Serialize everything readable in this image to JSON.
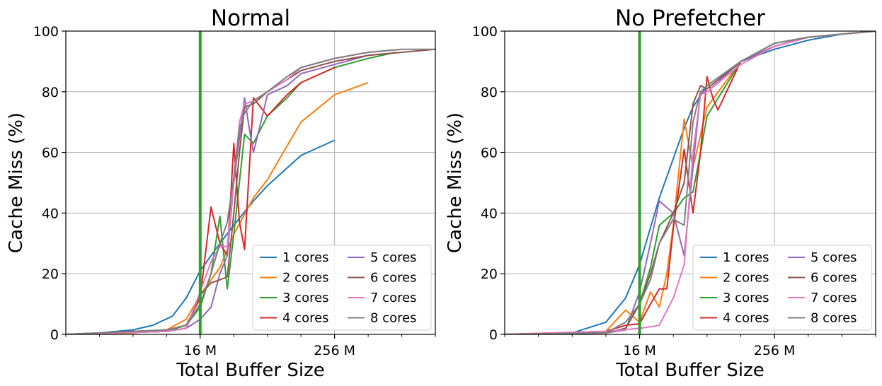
{
  "chart_data": [
    {
      "type": "line",
      "title": "Normal",
      "xlabel": "Total Buffer Size",
      "ylabel": "Cache Miss (%)",
      "x_scale": "log2",
      "xlim": [
        1,
        2048
      ],
      "ylim": [
        0,
        100
      ],
      "x_ticks": [
        {
          "value": 16,
          "label": "16 M"
        },
        {
          "value": 256,
          "label": "256 M"
        }
      ],
      "y_ticks": [
        0,
        20,
        40,
        60,
        80,
        100
      ],
      "grid": true,
      "legend_position": "lower-right",
      "legend_columns": 2,
      "vline": {
        "x": 16,
        "color": "#2ca02c"
      },
      "series": [
        {
          "name": "1 cores",
          "color": "#1f77b4",
          "x": [
            1,
            2,
            4,
            6,
            9,
            12,
            16,
            24,
            32,
            48,
            64,
            128,
            256
          ],
          "y": [
            0,
            0.5,
            1.5,
            3,
            6,
            12,
            21,
            30,
            36,
            44,
            49,
            59,
            64
          ]
        },
        {
          "name": "2 cores",
          "color": "#ff7f0e",
          "x": [
            1,
            4,
            8,
            12,
            16,
            24,
            32,
            48,
            64,
            128,
            256,
            512
          ],
          "y": [
            0,
            0.5,
            1.5,
            5,
            13,
            22,
            33,
            45,
            51,
            70,
            79,
            83
          ]
        },
        {
          "name": "3 cores",
          "color": "#2ca02c",
          "x": [
            1,
            8,
            12,
            16,
            20,
            24,
            28,
            32,
            40,
            48,
            64,
            96,
            128,
            256,
            512,
            900
          ],
          "y": [
            0,
            1,
            3,
            9,
            20,
            39,
            15,
            33,
            66,
            63,
            72,
            78,
            83,
            88,
            91,
            93
          ]
        },
        {
          "name": "4 cores",
          "color": "#d62728",
          "x": [
            1,
            8,
            12,
            16,
            20,
            24,
            28,
            32,
            36,
            40,
            48,
            64,
            96,
            128,
            256
          ],
          "y": [
            0,
            1.5,
            3,
            12,
            42,
            30,
            26,
            63,
            37,
            28,
            78,
            72,
            79,
            83,
            88
          ]
        },
        {
          "name": "5 cores",
          "color": "#9467bd",
          "x": [
            1,
            8,
            12,
            16,
            20,
            24,
            28,
            32,
            40,
            44,
            48,
            56,
            64,
            96,
            128,
            256,
            512,
            1024
          ],
          "y": [
            0,
            1,
            2,
            5,
            9,
            20,
            26,
            50,
            78,
            68,
            60,
            70,
            79,
            82,
            86,
            89,
            92,
            93
          ]
        },
        {
          "name": "6 cores",
          "color": "#8c564b",
          "x": [
            1,
            8,
            12,
            16,
            20,
            24,
            28,
            32,
            36,
            40,
            48,
            64,
            96,
            128,
            256,
            512,
            1024,
            2048
          ],
          "y": [
            0,
            1,
            2,
            13,
            17,
            18,
            19,
            40,
            60,
            75,
            76,
            80,
            84,
            87,
            90,
            92,
            93,
            94
          ]
        },
        {
          "name": "7 cores",
          "color": "#e377c2",
          "x": [
            1,
            8,
            12,
            16,
            20,
            24,
            28,
            32,
            36,
            40,
            48,
            64,
            96,
            128,
            256,
            512,
            1024
          ],
          "y": [
            0,
            1,
            2,
            14,
            24,
            29,
            29,
            50,
            70,
            76,
            77,
            80,
            84,
            88,
            91,
            93,
            94
          ]
        },
        {
          "name": "8 cores",
          "color": "#7f7f7f",
          "x": [
            1,
            8,
            12,
            16,
            20,
            24,
            28,
            32,
            36,
            40,
            48,
            64,
            96,
            128,
            256,
            512,
            1024,
            2048
          ],
          "y": [
            0,
            1.5,
            3,
            10,
            20,
            30,
            37,
            52,
            68,
            73,
            77,
            80,
            85,
            88,
            91,
            93,
            94,
            94
          ]
        }
      ]
    },
    {
      "type": "line",
      "title": "No Prefetcher",
      "xlabel": "Total Buffer Size",
      "ylabel": "Cache Miss (%)",
      "x_scale": "log2",
      "xlim": [
        1,
        2048
      ],
      "ylim": [
        0,
        100
      ],
      "x_ticks": [
        {
          "value": 16,
          "label": "16 M"
        },
        {
          "value": 256,
          "label": "256 M"
        }
      ],
      "y_ticks": [
        0,
        20,
        40,
        60,
        80,
        100
      ],
      "grid": true,
      "legend_position": "lower-right",
      "legend_columns": 2,
      "vline": {
        "x": 16,
        "color": "#2ca02c"
      },
      "series": [
        {
          "name": "1 cores",
          "color": "#1f77b4",
          "x": [
            1,
            4,
            8,
            12,
            16,
            24,
            32,
            40,
            48,
            64,
            128,
            256,
            512,
            1024,
            2048
          ],
          "y": [
            0,
            0.5,
            4,
            12,
            23,
            45,
            58,
            68,
            75,
            82,
            90,
            94,
            97,
            99,
            100
          ]
        },
        {
          "name": "2 cores",
          "color": "#ff7f0e",
          "x": [
            1,
            8,
            12,
            16,
            20,
            24,
            28,
            32,
            40,
            48,
            64,
            128,
            256,
            512,
            1024,
            2048
          ],
          "y": [
            0,
            1,
            8,
            4,
            14,
            9,
            20,
            36,
            71,
            55,
            75,
            90,
            95,
            98,
            99,
            100
          ]
        },
        {
          "name": "3 cores",
          "color": "#2ca02c",
          "x": [
            1,
            8,
            12,
            16,
            20,
            24,
            32,
            40,
            48,
            56,
            64,
            128,
            256,
            512,
            1024,
            2048
          ],
          "y": [
            0,
            0.5,
            2,
            10,
            22,
            36,
            40,
            45,
            47,
            60,
            72,
            90,
            95,
            98,
            99,
            100
          ]
        },
        {
          "name": "4 cores",
          "color": "#d62728",
          "x": [
            1,
            8,
            12,
            16,
            20,
            24,
            28,
            32,
            40,
            48,
            56,
            64,
            72,
            80,
            128,
            256,
            512,
            1024,
            2048
          ],
          "y": [
            0,
            1,
            3,
            3.5,
            10,
            15,
            15,
            35,
            61,
            40,
            60,
            85,
            78,
            74,
            90,
            95,
            98,
            99,
            100
          ]
        },
        {
          "name": "5 cores",
          "color": "#9467bd",
          "x": [
            1,
            8,
            12,
            16,
            20,
            24,
            32,
            40,
            48,
            56,
            64,
            128,
            256,
            512,
            1024,
            2048
          ],
          "y": [
            0,
            0.5,
            1.5,
            14,
            30,
            44,
            40,
            26,
            55,
            80,
            80,
            90,
            95,
            98,
            99,
            100
          ]
        },
        {
          "name": "6 cores",
          "color": "#8c564b",
          "x": [
            1,
            8,
            12,
            16,
            20,
            24,
            32,
            40,
            48,
            56,
            64,
            128,
            256,
            512,
            1024,
            2048
          ],
          "y": [
            0,
            0.5,
            2,
            10,
            20,
            30,
            40,
            50,
            76,
            82,
            81,
            90,
            96,
            98,
            99,
            100
          ]
        },
        {
          "name": "7 cores",
          "color": "#e377c2",
          "x": [
            1,
            8,
            16,
            20,
            24,
            32,
            40,
            48,
            56,
            64,
            128,
            256,
            512,
            1024,
            2048
          ],
          "y": [
            0,
            1,
            2,
            2.5,
            3,
            12,
            23,
            60,
            79,
            80,
            89,
            95,
            98,
            99,
            100
          ]
        },
        {
          "name": "8 cores",
          "color": "#7f7f7f",
          "x": [
            1,
            8,
            12,
            16,
            20,
            24,
            32,
            40,
            48,
            56,
            64,
            128,
            256,
            512,
            1024,
            2048
          ],
          "y": [
            0,
            0.5,
            4,
            10,
            18,
            30,
            38,
            36,
            70,
            80,
            82,
            90,
            96,
            98,
            99,
            100
          ]
        }
      ]
    }
  ]
}
